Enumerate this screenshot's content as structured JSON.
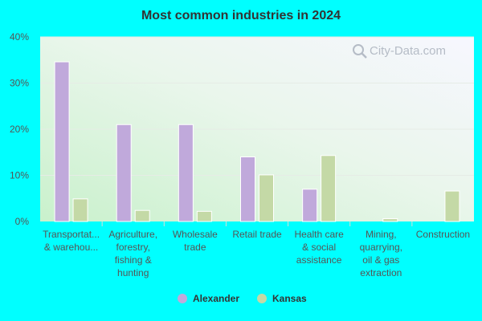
{
  "chart_data": {
    "type": "bar",
    "title": "Most common industries in 2024",
    "categories": [
      [
        "Transportat...",
        "& warehou..."
      ],
      [
        "Agriculture,",
        "forestry,",
        "fishing &",
        "hunting"
      ],
      [
        "Wholesale",
        "trade"
      ],
      [
        "Retail trade"
      ],
      [
        "Health care",
        "& social",
        "assistance"
      ],
      [
        "Mining,",
        "quarrying,",
        "oil & gas",
        "extraction"
      ],
      [
        "Construction"
      ]
    ],
    "series": [
      {
        "name": "Alexander",
        "color": "#c0a9db",
        "values": [
          34.6,
          21.0,
          21.0,
          14.0,
          7.0,
          0.0,
          0.0
        ]
      },
      {
        "name": "Kansas",
        "color": "#c4d9a6",
        "values": [
          4.9,
          2.4,
          2.2,
          10.1,
          14.3,
          0.6,
          6.6
        ]
      }
    ],
    "yticks": [
      "0%",
      "10%",
      "20%",
      "30%",
      "40%"
    ],
    "ylim": [
      0,
      40
    ],
    "grid": true,
    "legend_position": "bottom-center"
  },
  "watermark": "City-Data.com",
  "watermark_icon": "magnifier-icon"
}
